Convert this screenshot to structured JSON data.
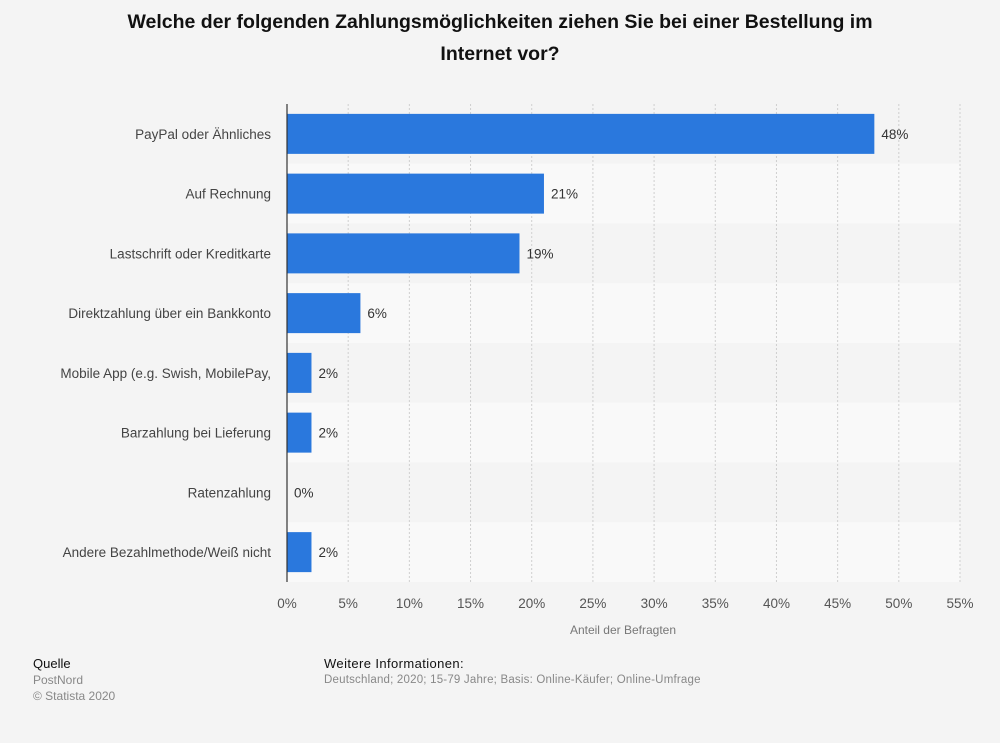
{
  "title": {
    "line1": "Welche der folgenden Zahlungsmöglichkeiten ziehen Sie bei einer Bestellung im",
    "line2": "Internet vor?"
  },
  "chart_data": {
    "type": "bar",
    "orientation": "horizontal",
    "categories": [
      "PayPal oder Ähnliches",
      "Auf Rechnung",
      "Lastschrift oder Kreditkarte",
      "Direktzahlung über ein Bankkonto",
      "Mobile App (e.g. Swish, MobilePay,",
      "Barzahlung bei Lieferung",
      "Ratenzahlung",
      "Andere Bezahlmethode/Weiß nicht"
    ],
    "values": [
      48,
      21,
      19,
      6,
      2,
      2,
      0,
      2
    ],
    "value_labels": [
      "48%",
      "21%",
      "19%",
      "6%",
      "2%",
      "2%",
      "0%",
      "2%"
    ],
    "x_ticks": [
      "0%",
      "5%",
      "10%",
      "15%",
      "20%",
      "25%",
      "30%",
      "35%",
      "40%",
      "45%",
      "50%",
      "55%"
    ],
    "xlim": [
      0,
      55
    ],
    "xlabel": "Anteil der Befragten",
    "ylabel": "",
    "grid": true,
    "bar_color": "#2a78dd"
  },
  "footer": {
    "source_heading": "Quelle",
    "source_name": "PostNord",
    "copyright": "© Statista 2020",
    "info_heading": "Weitere Informationen:",
    "info_text": "Deutschland; 2020; 15-79 Jahre; Basis: Online-Käufer; Online-Umfrage"
  }
}
